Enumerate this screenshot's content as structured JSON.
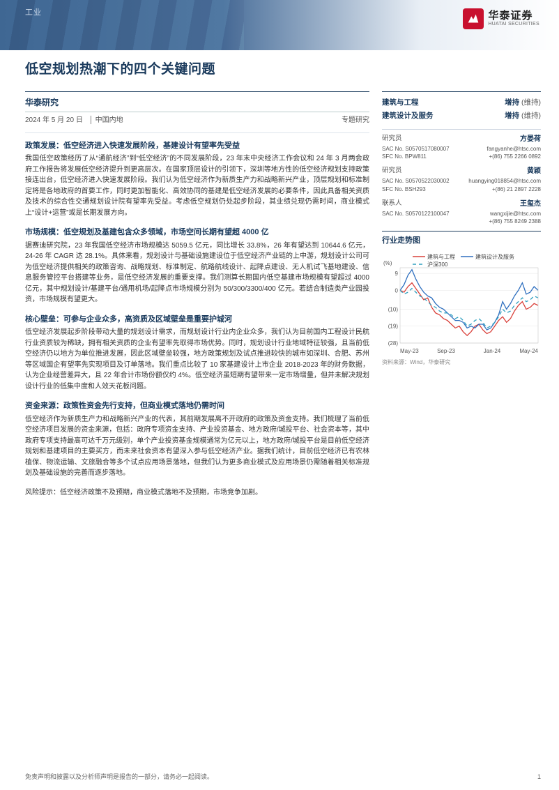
{
  "header": {
    "category": "工业",
    "logo_cn": "华泰证券",
    "logo_en": "HUATAI SECURITIES"
  },
  "title": "低空规划热潮下的四个关键问题",
  "meta": {
    "research_label": "华泰研究",
    "date": "2024 年 5 月 20 日",
    "region": "中国内地",
    "report_type": "专题研究"
  },
  "sections": [
    {
      "heading": "政策发展：低空经济进入快速发展阶段，基建设计有望率先受益",
      "body": "我国低空政策经历了从“通航经济”到“低空经济”的不同发展阶段，23 年末中央经济工作会议和 24 年 3 月两会政府工作报告将发展低空经济提升到更高层次。在国家顶层设计的引领下，深圳等地方性的低空经济规划支持政策接连出台，低空经济进入快速发展阶段。我们认为低空经济作为新质生产力和战略新兴产业，顶层规划和标准制定将是各地政府的首要工作，同时更加智能化、高效协同的基建是低空经济发展的必要条件，因此具备相关资质及技术的综合性交通规划设计院有望率先受益。考虑低空规划仍处起步阶段，其业绩兑现仍需时间，商业模式上“设计+运营”或是长期发展方向。"
    },
    {
      "heading": "市场规模：低空规划及基建包含众多领域，市场空间长期有望超 4000 亿",
      "body": "据赛迪研究院，23 年我国低空经济市场规模达 5059.5 亿元，同比增长 33.8%，26 年有望达到 10644.6 亿元，24-26 年 CAGR 达 28.1%。具体来看，规划设计与基础设施建设位于低空经济产业链的上中游，规划设计公司可为低空经济提供相关的政策咨询、战略规划、标准制定、航路航线设计、起降点建设、无人机试飞基地建设、信息服务管控平台搭建等业务，是低空经济发展的重要支撑。我们测算长期国内低空基建市场规模有望超过 4000 亿元，其中规划设计/基建平台/通用机场/起降点市场规模分别为 50/300/3300/400 亿元。若结合制造类产业园投资，市场规模有望更大。"
    },
    {
      "heading": "核心壁垒：可参与企业众多，高资质及区域壁垒是重要护城河",
      "body": "低空经济发展起步阶段带动大量的规划设计需求，而规划设计行业内企业众多，我们认为目前国内工程设计民航行业资质较为稀缺，拥有相关资质的企业有望率先取得市场优势。同时，规划设计行业地域特征较强，且当前低空经济仍以地方为单位推进发展，因此区域壁垒较强，地方政策规划及试点推进较快的城市如深圳、合肥、苏州等区域国企有望率先实现项目及订单落地。我们重点比较了 10 家基建设计上市企业 2018-2023 年的财务数据，认为企业经营差异大，且 22 年合计市场份额仅约 4%。低空经济虽短期有望带来一定市场增量，但并未解决规划设计行业的低集中度和人效天花板问题。"
    },
    {
      "heading": "资金来源：政策性资金先行支持，但商业模式落地仍需时间",
      "body": "低空经济作为新质生产力和战略新兴产业的代表，其前期发展离不开政府的政策及资金支持。我们梳理了当前低空经济项目发展的资金来源，包括：政府专项资金支持、产业投资基金、地方政府/城投平台、社会资本等，其中政府专项支持最高可达千万元级别，单个产业投资基金规模通常为亿元以上，地方政府/城投平台是目前低空经济规划和基建项目的主要买方，而未来社会资本有望深入参与低空经济产业。据我们统计，目前低空经济已有农林植保、物流运输、文旅融合等多个试点应用场景落地，但我们认为更多商业模式及应用场景仍需随着相关标准规划及基础设施的完善而逐步落地。"
    }
  ],
  "risk": "风险提示：低空经济政策不及预期，商业模式落地不及预期，市场竞争加剧。",
  "sidebar": {
    "ratings": [
      {
        "name": "建筑与工程",
        "rating": "增持",
        "status": "(维持)"
      },
      {
        "name": "建筑设计及服务",
        "rating": "增持",
        "status": "(维持)"
      }
    ],
    "analysts": [
      {
        "role": "研究员",
        "name": "方晏荷",
        "lines": [
          [
            "SAC No. S0570517080007",
            "fangyanhe@htsc.com"
          ],
          [
            "SFC No. BPW811",
            "+(86) 755 2266 0892"
          ]
        ]
      },
      {
        "role": "研究员",
        "name": "黄颖",
        "lines": [
          [
            "SAC No. S0570522030002",
            "huangying018854@htsc.com"
          ],
          [
            "SFC No. BSH293",
            "+(86) 21 2897 2228"
          ]
        ]
      },
      {
        "role": "联系人",
        "name": "王玺杰",
        "lines": [
          [
            "SAC No. S0570122100047",
            "wangxijie@htsc.com"
          ],
          [
            "",
            "+(86) 755 8249 2388"
          ]
        ]
      }
    ],
    "chart": {
      "title": "行业走势图",
      "type": "line",
      "y_label": "(%)",
      "y_ticks": [
        9,
        0,
        -10,
        -19,
        -28
      ],
      "ylim": [
        -28,
        12
      ],
      "x_labels": [
        "May-23",
        "Sep-23",
        "Jan-24",
        "May-24"
      ],
      "series": [
        {
          "name": "建筑与工程",
          "color": "#d9403a",
          "dash": "none",
          "values": [
            0,
            -1,
            2,
            4,
            1,
            -2,
            -5,
            -4,
            -9,
            -12,
            -13,
            -15,
            -16,
            -18,
            -20,
            -19,
            -22,
            -24,
            -22,
            -19,
            -18,
            -21,
            -23,
            -22,
            -19,
            -16,
            -14,
            -17,
            -15,
            -11,
            -8,
            -6,
            -10,
            -9,
            -7,
            -8
          ]
        },
        {
          "name": "建筑设计及服务",
          "color": "#2e6fbf",
          "dash": "none",
          "values": [
            0,
            3,
            8,
            11,
            6,
            2,
            -1,
            -3,
            -4,
            -7,
            -9,
            -10,
            -12,
            -14,
            -16,
            -16,
            -17,
            -20,
            -19,
            -20,
            -18,
            -18,
            -21,
            -20,
            -17,
            -13,
            -6,
            -10,
            -7,
            -3,
            0,
            4,
            -2,
            -1,
            2,
            0
          ]
        },
        {
          "name": "沪深300",
          "color": "#2e9fbf",
          "dash": "5,4",
          "values": [
            0,
            -2,
            -1,
            1,
            -1,
            -3,
            -4,
            -6,
            -8,
            -9,
            -11,
            -12,
            -12,
            -13,
            -15,
            -14,
            -16,
            -19,
            -18,
            -16,
            -15,
            -17,
            -20,
            -19,
            -17,
            -14,
            -10,
            -12,
            -11,
            -8,
            -6,
            -4,
            -6,
            -5,
            -3,
            -4
          ]
        }
      ],
      "legend_fontsize": 8,
      "axis_fontsize": 8,
      "grid_color": "#e6e6e6",
      "background_color": "#ffffff",
      "source": "资料来源：Wind，华泰研究"
    }
  },
  "footer": {
    "disclaimer": "免责声明和披露以及分析师声明是报告的一部分，请务必一起阅读。",
    "page": "1"
  }
}
